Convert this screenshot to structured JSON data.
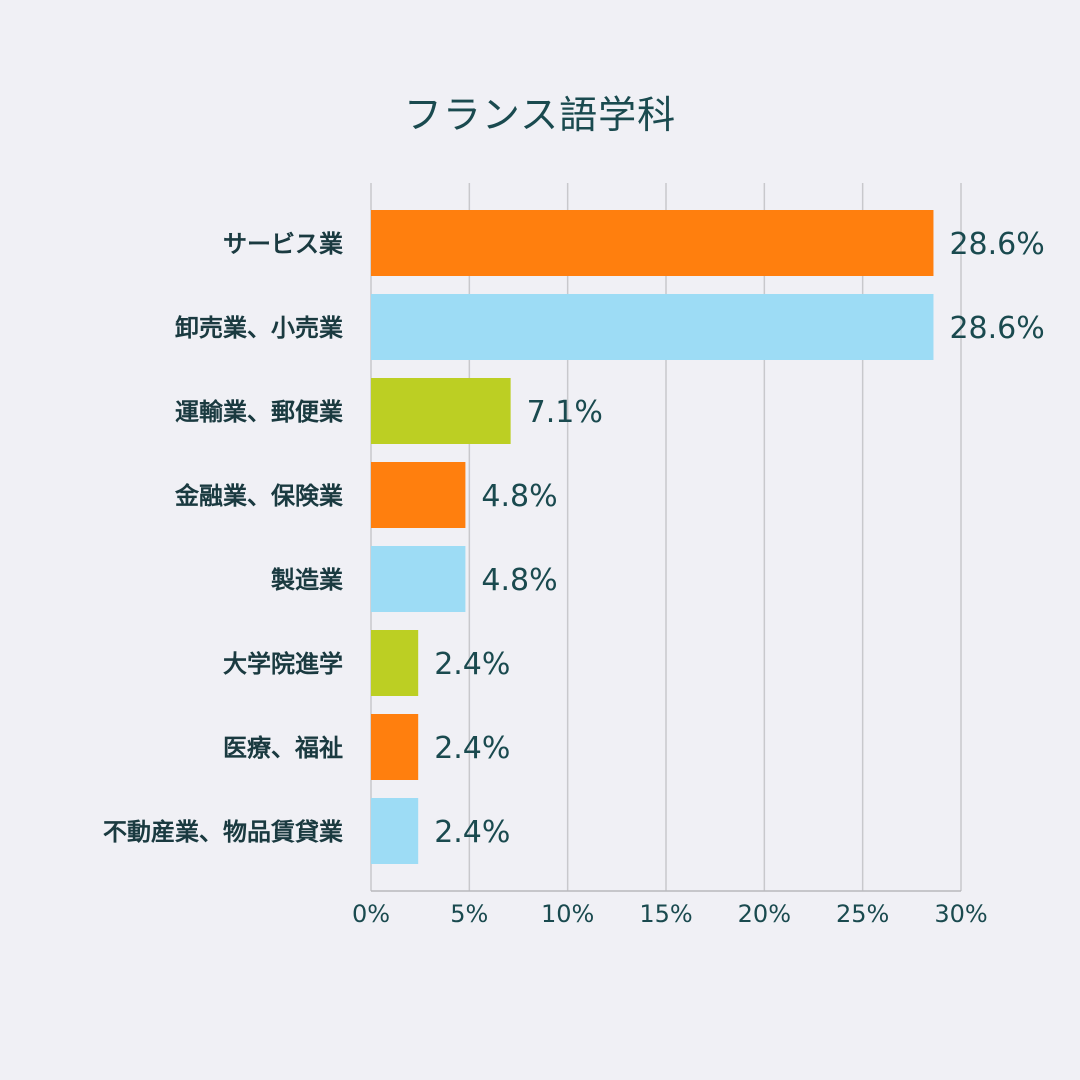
{
  "chart_data": {
    "type": "bar",
    "orientation": "horizontal",
    "title": "フランス語学科",
    "categories": [
      "サービス業",
      "卸売業、小売業",
      "運輸業、郵便業",
      "金融業、保険業",
      "製造業",
      "大学院進学",
      "医療、福祉",
      "不動産業、物品賃貸業"
    ],
    "values": [
      28.6,
      28.6,
      7.1,
      4.8,
      4.8,
      2.4,
      2.4,
      2.4
    ],
    "value_labels": [
      "28.6%",
      "28.6%",
      "7.1%",
      "4.8%",
      "4.8%",
      "2.4%",
      "2.4%",
      "2.4%"
    ],
    "bar_colors": [
      "#ff7f0e",
      "#9ddcf5",
      "#bccf23",
      "#ff7f0e",
      "#9ddcf5",
      "#bccf23",
      "#ff7f0e",
      "#9ddcf5"
    ],
    "xticks": [
      "0%",
      "5%",
      "10%",
      "15%",
      "20%",
      "25%",
      "30%"
    ],
    "xtick_values": [
      0,
      5,
      10,
      15,
      20,
      25,
      30
    ],
    "xlim": [
      0,
      30
    ],
    "xlabel": "",
    "ylabel": "",
    "grid": true
  }
}
